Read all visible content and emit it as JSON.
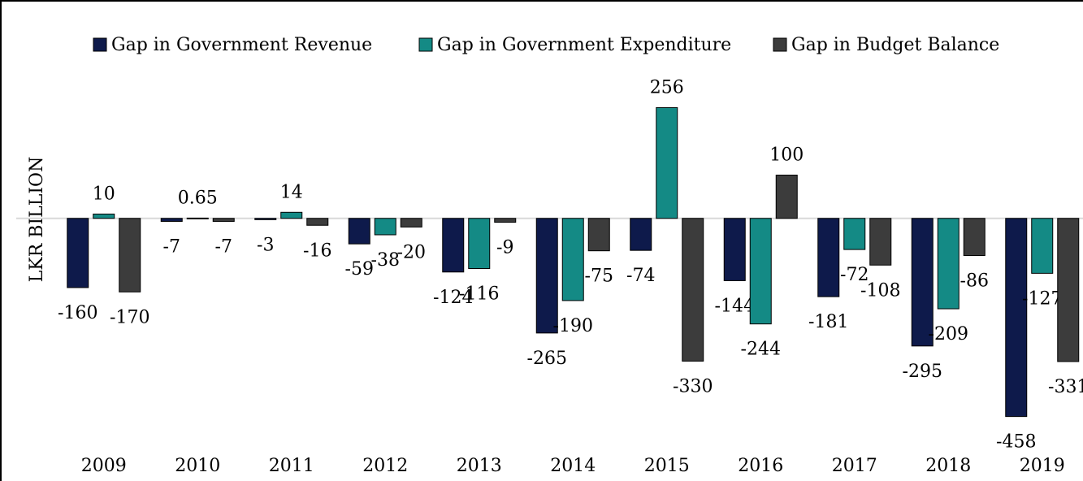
{
  "chart_data": {
    "type": "bar",
    "y_label": "LKR BILLION",
    "categories": [
      "2009",
      "2010",
      "2011",
      "2012",
      "2013",
      "2014",
      "2015",
      "2016",
      "2017",
      "2018",
      "2019"
    ],
    "series": [
      {
        "name": "Gap in Government Revenue",
        "color": "#0e1a4b",
        "values": [
          -160,
          -7,
          -3,
          -59,
          -124,
          -265,
          -74,
          -144,
          -181,
          -295,
          -458
        ]
      },
      {
        "name": "Gap in Government Expenditure",
        "color": "#148a85",
        "values": [
          10,
          0.65,
          14,
          -38,
          -116,
          -190,
          256,
          -244,
          -72,
          -209,
          -127
        ]
      },
      {
        "name": "Gap in Budget Balance",
        "color": "#3c3c3c",
        "values": [
          -170,
          -7,
          -16,
          -20,
          -9,
          -75,
          -330,
          100,
          -108,
          -86,
          -331
        ]
      }
    ],
    "ylim": [
      -500,
      300
    ],
    "legend": "top"
  }
}
